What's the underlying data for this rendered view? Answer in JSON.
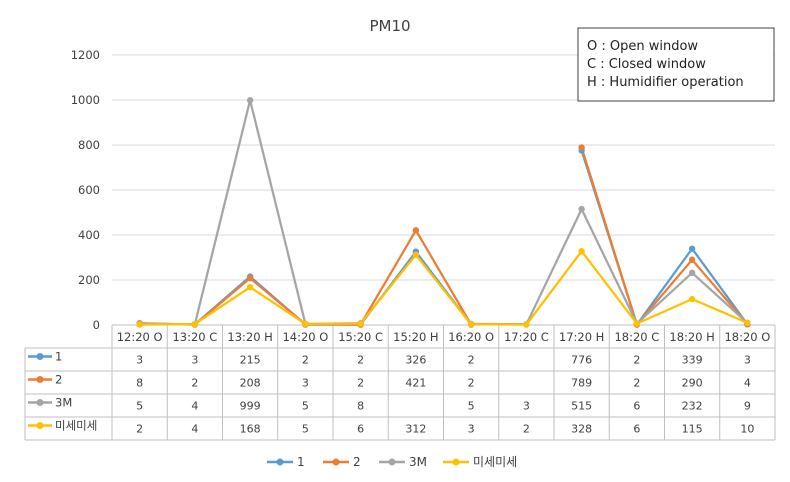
{
  "chart_data": {
    "type": "line",
    "title": "PM10",
    "categories": [
      "12:20 O",
      "13:20 C",
      "13:20 H",
      "14:20 O",
      "15:20 C",
      "15:20 H",
      "16:20 O",
      "17:20 C",
      "17:20 H",
      "18:20 C",
      "18:20 H",
      "18:20 O"
    ],
    "ylim": [
      0,
      1200
    ],
    "yticks": [
      "0",
      "200",
      "400",
      "600",
      "800",
      "1000",
      "1200"
    ],
    "ytick_values": [
      0,
      200,
      400,
      600,
      800,
      1000,
      1200
    ],
    "grid": true,
    "legend_position": "bottom",
    "series": [
      {
        "name": "1",
        "color": "#5B9BD5",
        "values": [
          3,
          3,
          215,
          2,
          2,
          326,
          2,
          null,
          776,
          2,
          339,
          3
        ]
      },
      {
        "name": "2",
        "color": "#ED7D31",
        "values": [
          8,
          2,
          208,
          3,
          2,
          421,
          2,
          null,
          789,
          2,
          290,
          4
        ]
      },
      {
        "name": "3M",
        "color": "#A5A5A5",
        "values": [
          5,
          4,
          999,
          5,
          8,
          null,
          5,
          3,
          515,
          6,
          232,
          9
        ]
      },
      {
        "name": "미세미세",
        "color": "#FFC000",
        "values": [
          2,
          4,
          168,
          5,
          6,
          312,
          3,
          2,
          328,
          6,
          115,
          10
        ]
      }
    ],
    "annotation": {
      "lines": [
        "O : Open window",
        "C : Closed window",
        "H : Humidifier operation"
      ]
    }
  }
}
